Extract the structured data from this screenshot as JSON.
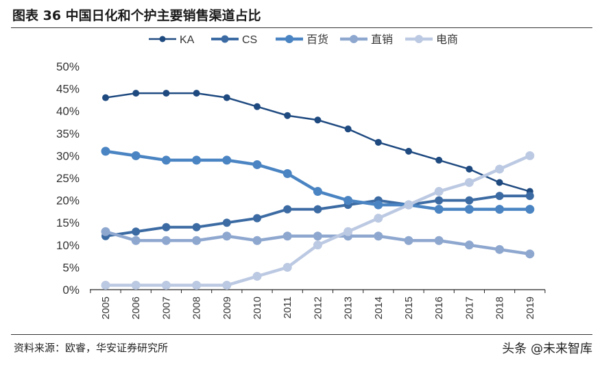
{
  "title": "图表 36  中国日化和个护主要销售渠道占比",
  "source": "资料来源：欧睿，华安证券研究所",
  "watermark": "头条 @未来智库",
  "chart_data": {
    "type": "line",
    "title": "",
    "xlabel": "",
    "ylabel": "",
    "categories": [
      "2005",
      "2006",
      "2007",
      "2008",
      "2009",
      "2010",
      "2011",
      "2012",
      "2013",
      "2014",
      "2015",
      "2016",
      "2017",
      "2018",
      "2019"
    ],
    "ylim": [
      0,
      50
    ],
    "yticks": [
      "0%",
      "5%",
      "10%",
      "15%",
      "20%",
      "25%",
      "30%",
      "35%",
      "40%",
      "45%",
      "50%"
    ],
    "grid": false,
    "legend": "top",
    "series": [
      {
        "name": "KA",
        "color": "#1f4a80",
        "values": [
          43,
          44,
          44,
          44,
          43,
          41,
          39,
          38,
          36,
          33,
          31,
          29,
          27,
          24,
          22
        ]
      },
      {
        "name": "CS",
        "color": "#3c6ba3",
        "values": [
          12,
          13,
          14,
          14,
          15,
          16,
          18,
          18,
          19,
          20,
          19,
          20,
          20,
          21,
          21
        ]
      },
      {
        "name": "百货",
        "color": "#4a84c2",
        "values": [
          31,
          30,
          29,
          29,
          29,
          28,
          26,
          22,
          20,
          19,
          19,
          18,
          18,
          18,
          18
        ]
      },
      {
        "name": "直销",
        "color": "#8ea7cf",
        "values": [
          13,
          11,
          11,
          11,
          12,
          11,
          12,
          12,
          12,
          12,
          11,
          11,
          10,
          9,
          8
        ]
      },
      {
        "name": "电商",
        "color": "#bcc9e2",
        "values": [
          1,
          1,
          1,
          1,
          1,
          3,
          5,
          10,
          13,
          16,
          19,
          22,
          24,
          27,
          30
        ]
      }
    ]
  }
}
